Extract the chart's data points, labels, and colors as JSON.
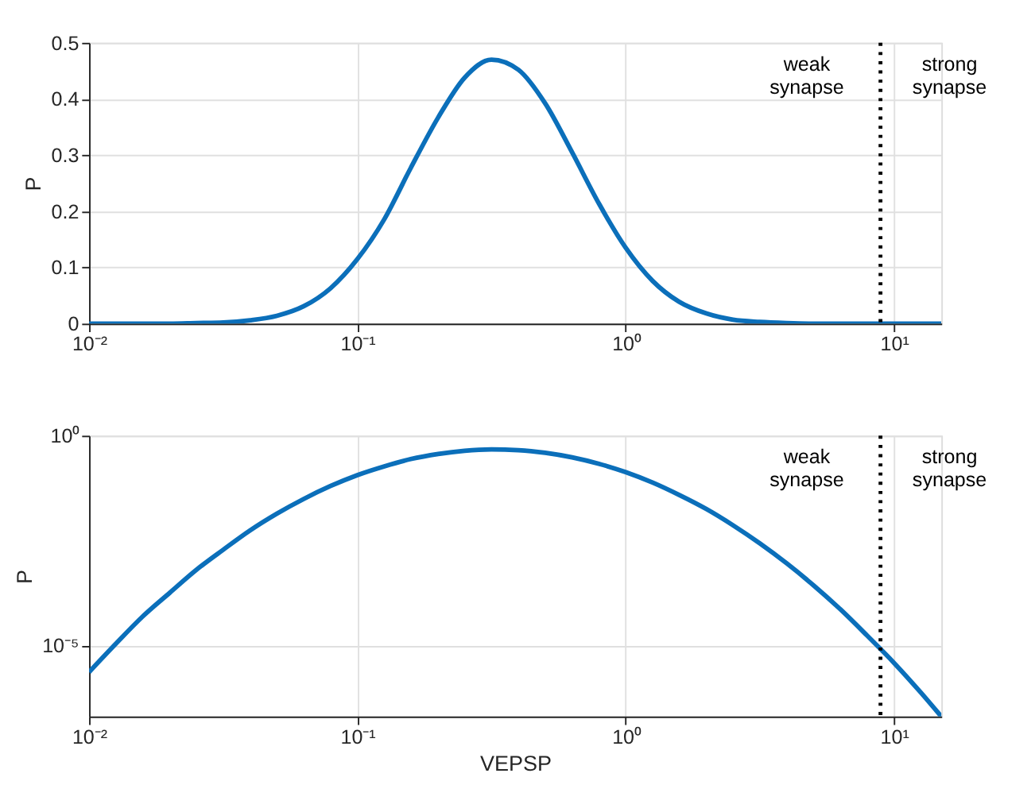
{
  "chart_data": [
    {
      "type": "line",
      "ylabel": "P",
      "x": [
        0.01,
        0.0126,
        0.0158,
        0.02,
        0.0251,
        0.0316,
        0.0398,
        0.0501,
        0.0631,
        0.0794,
        0.1,
        0.126,
        0.158,
        0.2,
        0.251,
        0.316,
        0.398,
        0.501,
        0.631,
        0.794,
        1,
        1.26,
        1.58,
        2,
        2.51,
        3.16,
        3.98,
        5.01,
        6.31,
        7.94,
        10,
        12.6,
        15
      ],
      "series": [
        {
          "color": "#0b6fba",
          "values": [
            0,
            0,
            0,
            0,
            0.001,
            0.002,
            0.006,
            0.014,
            0.031,
            0.063,
            0.115,
            0.186,
            0.277,
            0.367,
            0.438,
            0.47,
            0.452,
            0.392,
            0.305,
            0.214,
            0.135,
            0.076,
            0.039,
            0.018,
            0.007,
            0.003,
            0.001,
            0,
            0,
            0,
            0,
            0,
            0
          ]
        }
      ],
      "log": "x",
      "xlim": [
        0.01,
        15
      ],
      "ylim": [
        0,
        0.5
      ],
      "xticks": [
        {
          "value": 0.01,
          "label": "10⁻²"
        },
        {
          "value": 0.1,
          "label": "10⁻¹"
        },
        {
          "value": 1,
          "label": "10⁰"
        },
        {
          "value": 10,
          "label": "10¹"
        }
      ],
      "yticks": [
        0,
        0.1,
        0.2,
        0.3,
        0.4,
        0.5
      ],
      "grid": true,
      "line_style": "solid",
      "ref_lines": [
        {
          "axis": "x",
          "value": 8.9,
          "color": "#000000",
          "line_style": "dotted"
        }
      ],
      "annotations": [
        "weak\nsynapse",
        "strong\nsynapse"
      ]
    },
    {
      "type": "line",
      "ylabel": "P",
      "xlabel": "VEPSP",
      "x": [
        0.01,
        0.0126,
        0.0158,
        0.02,
        0.0251,
        0.0316,
        0.0398,
        0.0501,
        0.0631,
        0.0794,
        0.1,
        0.126,
        0.158,
        0.2,
        0.251,
        0.316,
        0.398,
        0.501,
        0.631,
        0.794,
        1,
        1.26,
        1.58,
        2,
        2.51,
        3.16,
        3.98,
        5.01,
        6.31,
        7.94,
        10,
        12.6,
        15
      ],
      "series": [
        {
          "color": "#0b6fba",
          "values": [
            2.3e-06,
            1.1e-05,
            4.8e-05,
            0.00018,
            0.00063,
            0.0019,
            0.0055,
            0.0138,
            0.031,
            0.063,
            0.115,
            0.186,
            0.277,
            0.367,
            0.438,
            0.47,
            0.452,
            0.392,
            0.305,
            0.214,
            0.135,
            0.076,
            0.0387,
            0.0177,
            0.0073,
            0.0027,
            0.0009,
            0.00027,
            7.2e-05,
            1.7e-05,
            3.8e-06,
            7.4e-07,
            2e-07
          ]
        }
      ],
      "log": "xy",
      "xlim": [
        0.01,
        15
      ],
      "ylim": [
        2e-07,
        1
      ],
      "xticks": [
        {
          "value": 0.01,
          "label": "10⁻²"
        },
        {
          "value": 0.1,
          "label": "10⁻¹"
        },
        {
          "value": 1,
          "label": "10⁰"
        },
        {
          "value": 10,
          "label": "10¹"
        }
      ],
      "yticks": [
        {
          "value": 1e-05,
          "label": "10⁻⁵"
        },
        {
          "value": 1,
          "label": "10⁰"
        }
      ],
      "grid": true,
      "line_style": "solid",
      "ref_lines": [
        {
          "axis": "x",
          "value": 8.9,
          "color": "#000000",
          "line_style": "dotted"
        }
      ],
      "annotations": [
        "weak\nsynapse",
        "strong\nsynapse"
      ]
    }
  ]
}
